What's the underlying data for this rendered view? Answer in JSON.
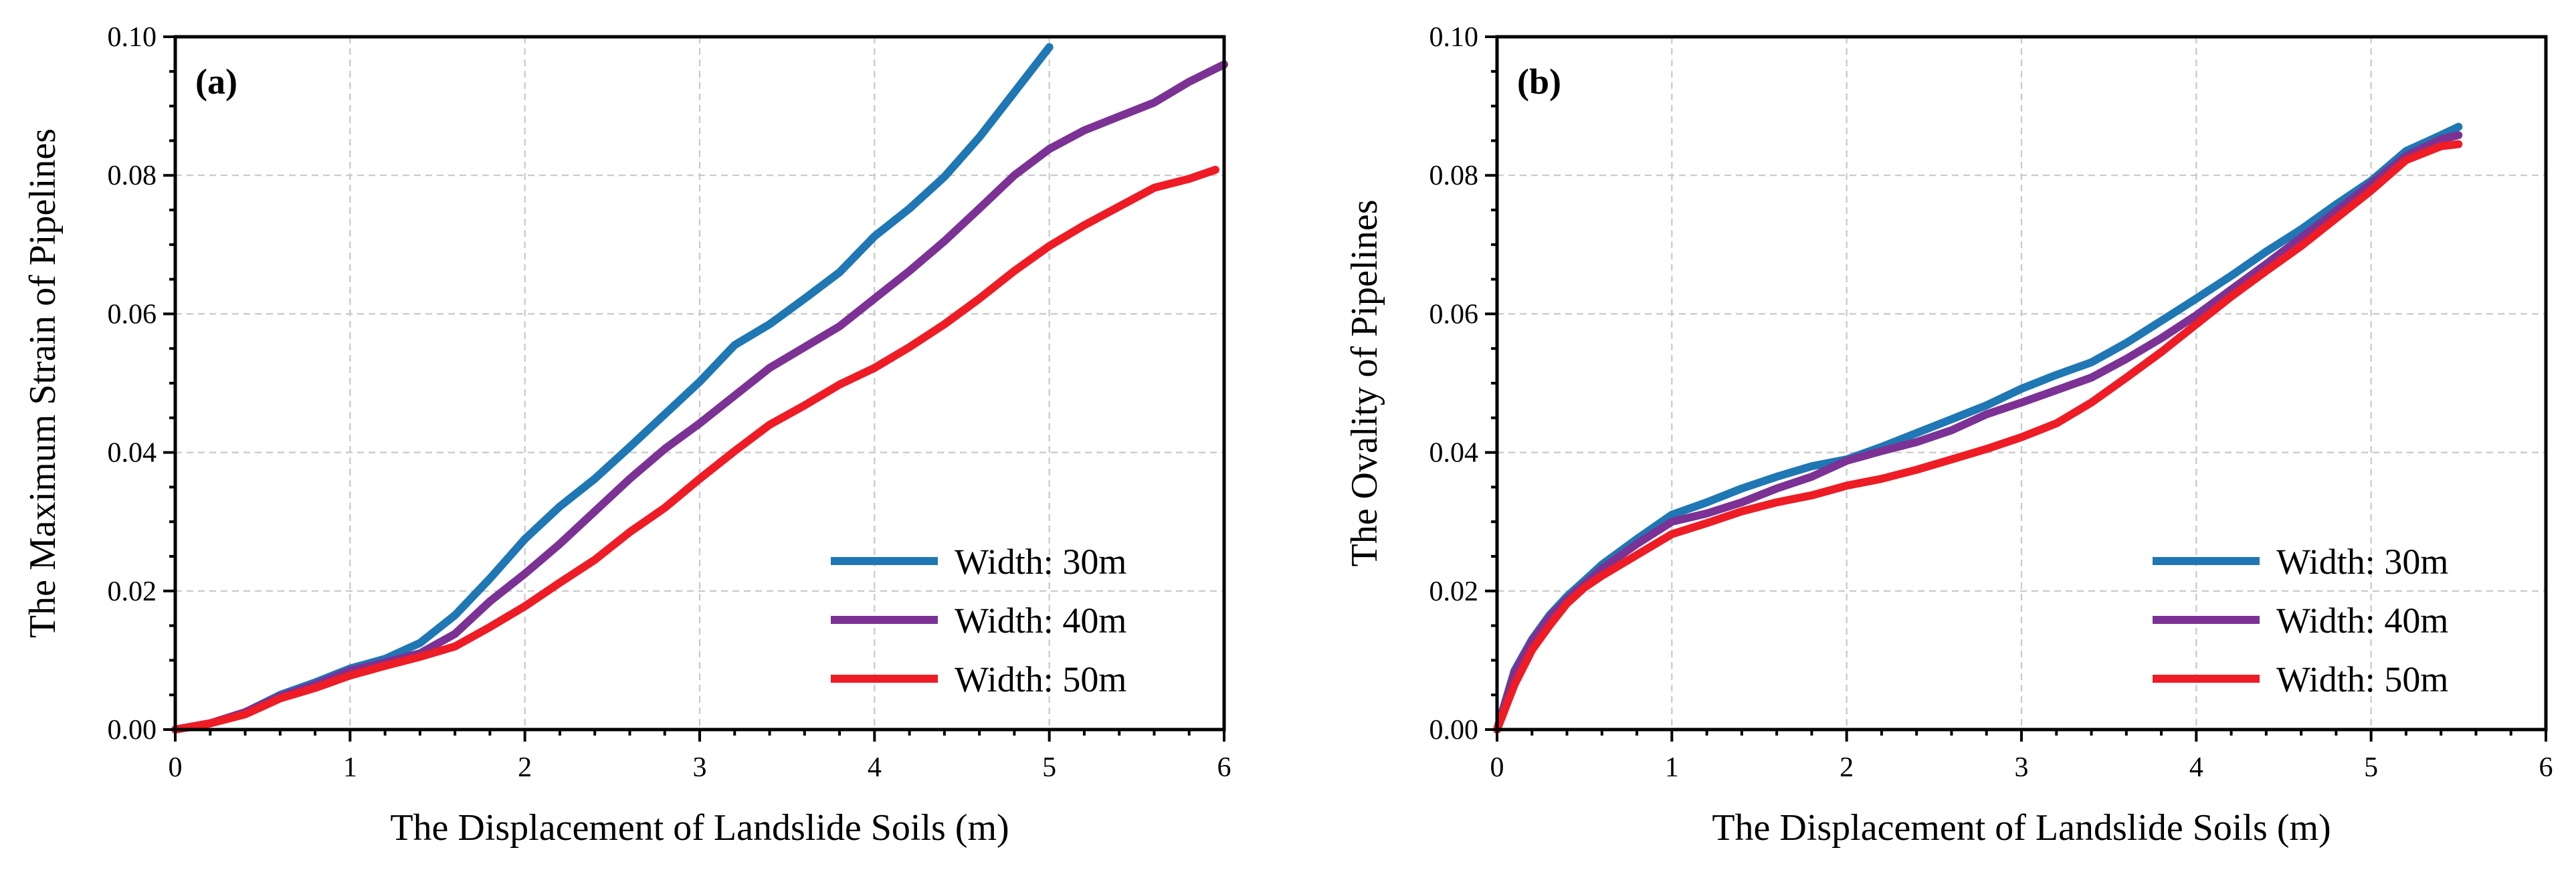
{
  "chart_data": [
    {
      "type": "line",
      "panel_label": "(a)",
      "xlabel": "The Displacement of Landslide Soils (m)",
      "ylabel": "The Maximum Strain of Pipelines",
      "xlim": [
        0,
        6
      ],
      "ylim": [
        0,
        0.1
      ],
      "x_ticks": [
        "0",
        "1",
        "2",
        "3",
        "4",
        "5",
        "6"
      ],
      "y_ticks": [
        "0.00",
        "0.02",
        "0.04",
        "0.06",
        "0.08",
        "0.10"
      ],
      "grid": true,
      "legend_position": "lower-right",
      "series": [
        {
          "name": "Width: 30m",
          "color": "#1f77b4",
          "points": [
            [
              0,
              0
            ],
            [
              0.2,
              0.0009
            ],
            [
              0.4,
              0.0025
            ],
            [
              0.6,
              0.005
            ],
            [
              0.8,
              0.0068
            ],
            [
              1.0,
              0.0088
            ],
            [
              1.2,
              0.0102
            ],
            [
              1.4,
              0.0125
            ],
            [
              1.6,
              0.0165
            ],
            [
              1.8,
              0.0218
            ],
            [
              2.0,
              0.0275
            ],
            [
              2.2,
              0.0322
            ],
            [
              2.4,
              0.0362
            ],
            [
              2.6,
              0.0408
            ],
            [
              2.8,
              0.0455
            ],
            [
              3.0,
              0.0502
            ],
            [
              3.2,
              0.0555
            ],
            [
              3.4,
              0.0585
            ],
            [
              3.6,
              0.0622
            ],
            [
              3.8,
              0.066
            ],
            [
              4.0,
              0.0712
            ],
            [
              4.2,
              0.0752
            ],
            [
              4.4,
              0.0798
            ],
            [
              4.6,
              0.0855
            ],
            [
              4.8,
              0.092
            ],
            [
              5.0,
              0.0985
            ]
          ]
        },
        {
          "name": "Width: 40m",
          "color": "#7b3294",
          "points": [
            [
              0,
              0
            ],
            [
              0.2,
              0.0009
            ],
            [
              0.4,
              0.0025
            ],
            [
              0.6,
              0.0048
            ],
            [
              0.8,
              0.0065
            ],
            [
              1.0,
              0.0085
            ],
            [
              1.2,
              0.0097
            ],
            [
              1.4,
              0.011
            ],
            [
              1.6,
              0.0138
            ],
            [
              1.8,
              0.0185
            ],
            [
              2.0,
              0.0225
            ],
            [
              2.2,
              0.0268
            ],
            [
              2.4,
              0.0315
            ],
            [
              2.6,
              0.0362
            ],
            [
              2.8,
              0.0405
            ],
            [
              3.0,
              0.0442
            ],
            [
              3.2,
              0.0482
            ],
            [
              3.4,
              0.0522
            ],
            [
              3.6,
              0.0552
            ],
            [
              3.8,
              0.0582
            ],
            [
              4.0,
              0.0622
            ],
            [
              4.2,
              0.0662
            ],
            [
              4.4,
              0.0705
            ],
            [
              4.6,
              0.0752
            ],
            [
              4.8,
              0.08
            ],
            [
              5.0,
              0.0838
            ],
            [
              5.2,
              0.0865
            ],
            [
              5.4,
              0.0885
            ],
            [
              5.6,
              0.0905
            ],
            [
              5.8,
              0.0935
            ],
            [
              6.0,
              0.096
            ]
          ]
        },
        {
          "name": "Width: 50m",
          "color": "#ee1c25",
          "points": [
            [
              0,
              0
            ],
            [
              0.2,
              0.0009
            ],
            [
              0.4,
              0.0022
            ],
            [
              0.6,
              0.0045
            ],
            [
              0.8,
              0.006
            ],
            [
              1.0,
              0.0078
            ],
            [
              1.2,
              0.0092
            ],
            [
              1.4,
              0.0105
            ],
            [
              1.6,
              0.012
            ],
            [
              1.8,
              0.0148
            ],
            [
              2.0,
              0.0178
            ],
            [
              2.2,
              0.0212
            ],
            [
              2.4,
              0.0245
            ],
            [
              2.6,
              0.0285
            ],
            [
              2.8,
              0.032
            ],
            [
              3.0,
              0.0362
            ],
            [
              3.2,
              0.0402
            ],
            [
              3.4,
              0.044
            ],
            [
              3.6,
              0.0468
            ],
            [
              3.8,
              0.0498
            ],
            [
              4.0,
              0.0522
            ],
            [
              4.2,
              0.0552
            ],
            [
              4.4,
              0.0585
            ],
            [
              4.6,
              0.0622
            ],
            [
              4.8,
              0.0662
            ],
            [
              5.0,
              0.0698
            ],
            [
              5.2,
              0.0728
            ],
            [
              5.4,
              0.0755
            ],
            [
              5.6,
              0.0782
            ],
            [
              5.8,
              0.0795
            ],
            [
              5.95,
              0.0808
            ]
          ]
        }
      ]
    },
    {
      "type": "line",
      "panel_label": "(b)",
      "xlabel": "The Displacement of Landslide Soils (m)",
      "ylabel": "The Ovality of Pipelines",
      "xlim": [
        0,
        6
      ],
      "ylim": [
        0,
        0.1
      ],
      "x_ticks": [
        "0",
        "1",
        "2",
        "3",
        "4",
        "5",
        "6"
      ],
      "y_ticks": [
        "0.00",
        "0.02",
        "0.04",
        "0.06",
        "0.08",
        "0.10"
      ],
      "grid": true,
      "legend_position": "lower-right",
      "series": [
        {
          "name": "Width: 30m",
          "color": "#1f77b4",
          "points": [
            [
              0,
              0
            ],
            [
              0.1,
              0.0085
            ],
            [
              0.2,
              0.013
            ],
            [
              0.3,
              0.0165
            ],
            [
              0.4,
              0.0192
            ],
            [
              0.5,
              0.0215
            ],
            [
              0.6,
              0.0238
            ],
            [
              0.8,
              0.0275
            ],
            [
              1.0,
              0.031
            ],
            [
              1.2,
              0.0328
            ],
            [
              1.4,
              0.0348
            ],
            [
              1.6,
              0.0365
            ],
            [
              1.8,
              0.038
            ],
            [
              2.0,
              0.039
            ],
            [
              2.2,
              0.0408
            ],
            [
              2.4,
              0.0428
            ],
            [
              2.6,
              0.0448
            ],
            [
              2.8,
              0.0468
            ],
            [
              3.0,
              0.0492
            ],
            [
              3.2,
              0.0512
            ],
            [
              3.4,
              0.053
            ],
            [
              3.6,
              0.0558
            ],
            [
              3.8,
              0.059
            ],
            [
              4.0,
              0.0622
            ],
            [
              4.2,
              0.0655
            ],
            [
              4.4,
              0.069
            ],
            [
              4.6,
              0.0722
            ],
            [
              4.8,
              0.0758
            ],
            [
              5.0,
              0.0792
            ],
            [
              5.2,
              0.0835
            ],
            [
              5.4,
              0.0858
            ],
            [
              5.5,
              0.087
            ]
          ]
        },
        {
          "name": "Width: 40m",
          "color": "#7b3294",
          "points": [
            [
              0,
              0
            ],
            [
              0.1,
              0.0082
            ],
            [
              0.2,
              0.0128
            ],
            [
              0.3,
              0.0162
            ],
            [
              0.4,
              0.0188
            ],
            [
              0.5,
              0.021
            ],
            [
              0.6,
              0.0232
            ],
            [
              0.8,
              0.0268
            ],
            [
              1.0,
              0.03
            ],
            [
              1.2,
              0.0312
            ],
            [
              1.4,
              0.0328
            ],
            [
              1.6,
              0.0348
            ],
            [
              1.8,
              0.0365
            ],
            [
              2.0,
              0.0388
            ],
            [
              2.2,
              0.0402
            ],
            [
              2.4,
              0.0415
            ],
            [
              2.6,
              0.0432
            ],
            [
              2.8,
              0.0455
            ],
            [
              3.0,
              0.0472
            ],
            [
              3.2,
              0.049
            ],
            [
              3.4,
              0.0508
            ],
            [
              3.6,
              0.0535
            ],
            [
              3.8,
              0.0565
            ],
            [
              4.0,
              0.0598
            ],
            [
              4.2,
              0.0635
            ],
            [
              4.4,
              0.0672
            ],
            [
              4.6,
              0.071
            ],
            [
              4.8,
              0.0748
            ],
            [
              5.0,
              0.0788
            ],
            [
              5.2,
              0.0828
            ],
            [
              5.4,
              0.0852
            ],
            [
              5.5,
              0.0858
            ]
          ]
        },
        {
          "name": "Width: 50m",
          "color": "#ee1c25",
          "points": [
            [
              0,
              0
            ],
            [
              0.1,
              0.0065
            ],
            [
              0.2,
              0.0115
            ],
            [
              0.3,
              0.015
            ],
            [
              0.4,
              0.0182
            ],
            [
              0.5,
              0.0205
            ],
            [
              0.6,
              0.0222
            ],
            [
              0.8,
              0.0252
            ],
            [
              1.0,
              0.0282
            ],
            [
              1.2,
              0.0298
            ],
            [
              1.4,
              0.0315
            ],
            [
              1.6,
              0.0328
            ],
            [
              1.8,
              0.0338
            ],
            [
              2.0,
              0.0352
            ],
            [
              2.2,
              0.0362
            ],
            [
              2.4,
              0.0375
            ],
            [
              2.6,
              0.039
            ],
            [
              2.8,
              0.0405
            ],
            [
              3.0,
              0.0422
            ],
            [
              3.2,
              0.0442
            ],
            [
              3.4,
              0.0472
            ],
            [
              3.6,
              0.0508
            ],
            [
              3.8,
              0.0545
            ],
            [
              4.0,
              0.0585
            ],
            [
              4.2,
              0.0625
            ],
            [
              4.4,
              0.0662
            ],
            [
              4.6,
              0.0698
            ],
            [
              4.8,
              0.0738
            ],
            [
              5.0,
              0.0778
            ],
            [
              5.2,
              0.0822
            ],
            [
              5.4,
              0.0842
            ],
            [
              5.5,
              0.0845
            ]
          ]
        }
      ]
    }
  ]
}
